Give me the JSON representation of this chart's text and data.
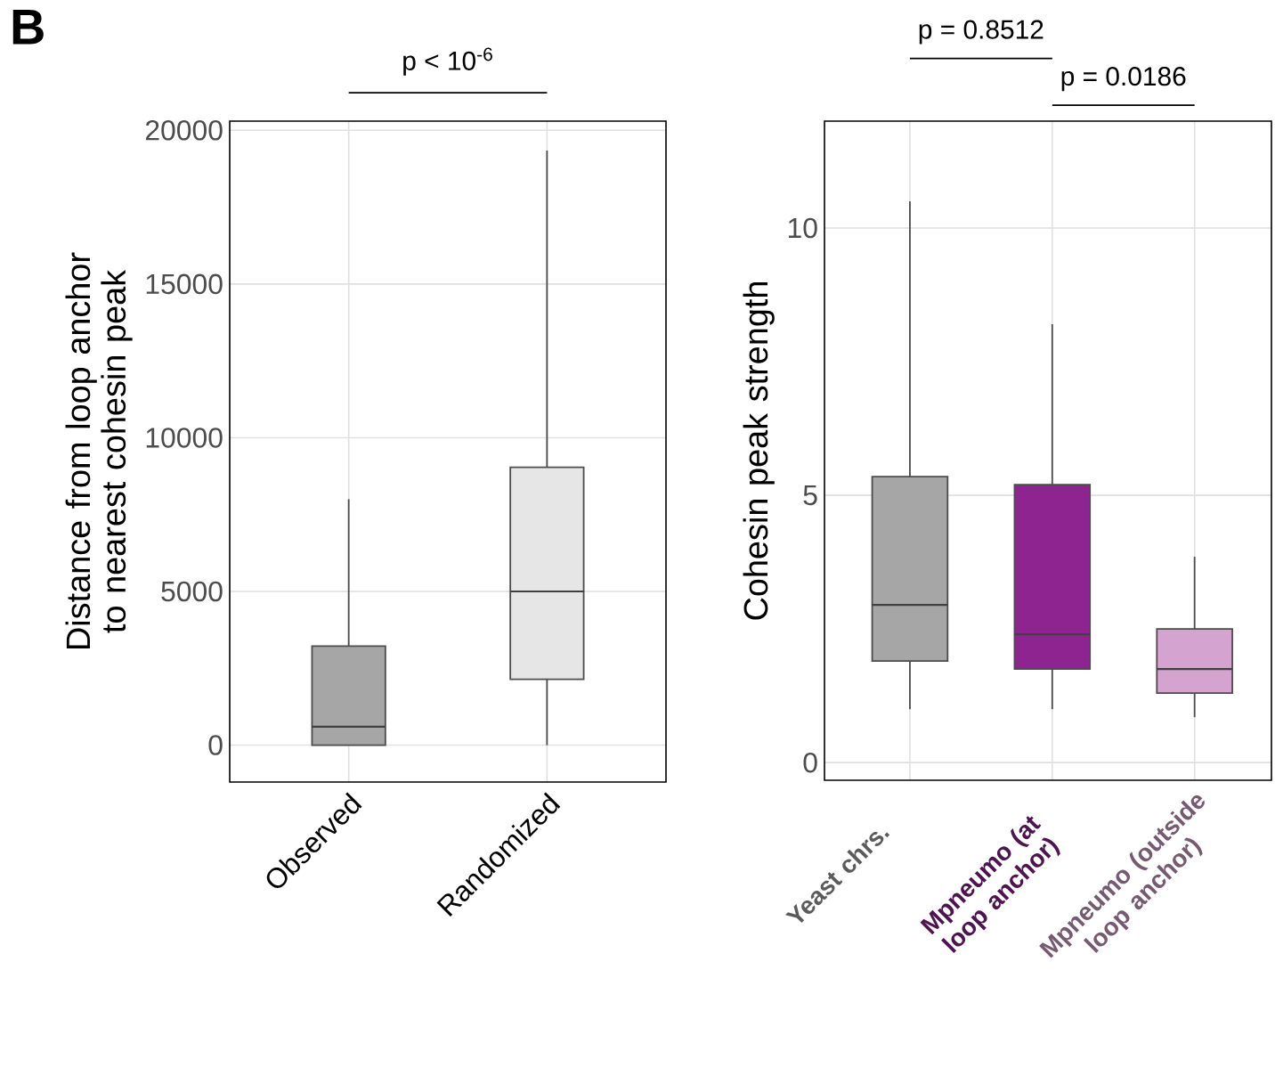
{
  "chart_data": [
    {
      "type": "box",
      "categories": [
        "Observed",
        "Randomized"
      ],
      "ylabel": "Distance from loop anchor to nearest cohesin peak",
      "ylim": [
        -1200,
        20300
      ],
      "yticks": [
        0,
        5000,
        10000,
        15000,
        20000
      ],
      "grid": true,
      "colors": [
        "#a6a6a6",
        "#e6e6e6"
      ],
      "boxes": [
        {
          "low": 0,
          "q1": 0,
          "median": 600,
          "q3": 3220,
          "high": 8000
        },
        {
          "low": 0,
          "q1": 2140,
          "median": 5000,
          "q3": 9040,
          "high": 19340
        }
      ],
      "annotations": [
        "B",
        "p < 10$^{-6}$"
      ]
    },
    {
      "type": "box",
      "categories": [
        "Yeast chrs.",
        "Mpneumo (at loop anchor)",
        "Mpneumo (outside loop anchor)"
      ],
      "ylabel": "Cohesin peak strength",
      "ylim": [
        -0.33,
        12
      ],
      "yticks": [
        0,
        5,
        10
      ],
      "grid": true,
      "colors": [
        "#a6a6a6",
        "#8e2490",
        "#d4a3d0"
      ],
      "boxes": [
        {
          "low": 1.0,
          "q1": 1.9,
          "median": 2.95,
          "q3": 5.35,
          "high": 10.5
        },
        {
          "low": 1.0,
          "q1": 1.75,
          "median": 2.4,
          "q3": 5.2,
          "high": 8.2
        },
        {
          "low": 0.85,
          "q1": 1.3,
          "median": 1.75,
          "q3": 2.5,
          "high": 3.85
        }
      ],
      "annotations": [
        "p = 0.8512",
        "p = 0.0186"
      ]
    }
  ]
}
